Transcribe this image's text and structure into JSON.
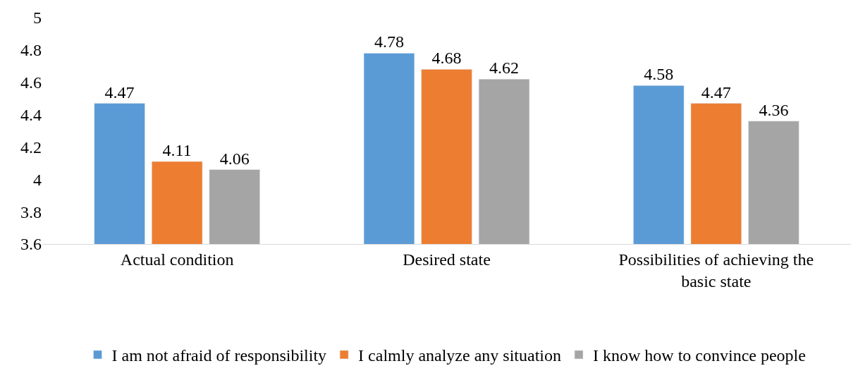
{
  "chart_data": {
    "type": "bar",
    "categories": [
      "Actual condition",
      "Desired state",
      "Possibilities of achieving the basic state"
    ],
    "series": [
      {
        "name": "I am not afraid of responsibility",
        "color": "#5b9bd5",
        "values": [
          4.47,
          4.78,
          4.58
        ]
      },
      {
        "name": "I calmly analyze any situation",
        "color": "#ed7d31",
        "values": [
          4.11,
          4.68,
          4.47
        ]
      },
      {
        "name": "I know how to convince people",
        "color": "#a5a5a5",
        "values": [
          4.06,
          4.62,
          4.36
        ]
      }
    ],
    "ylim": [
      3.6,
      5
    ],
    "yticks": [
      3.6,
      3.8,
      4,
      4.2,
      4.4,
      4.6,
      4.8,
      5
    ],
    "grid": false,
    "legend": "bottom",
    "data_labels": true
  }
}
